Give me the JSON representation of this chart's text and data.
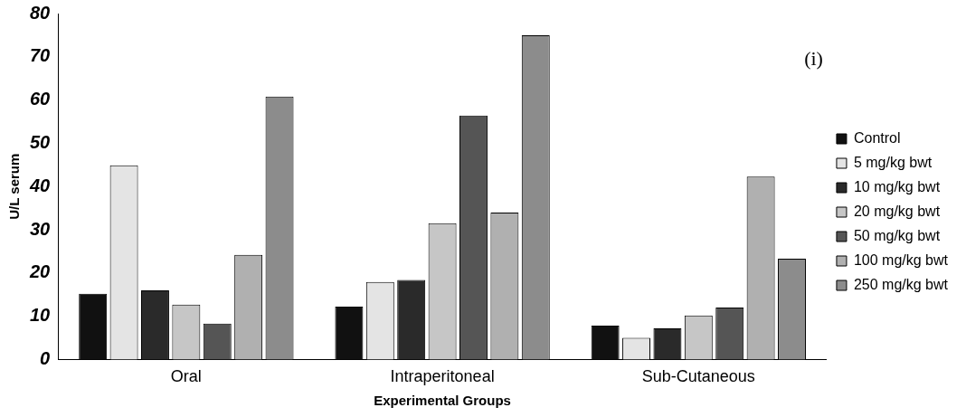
{
  "chart_data": {
    "type": "bar",
    "xlabel": "Experimental Groups",
    "ylabel": "U/L serum",
    "categories": [
      "Oral",
      "Intraperitoneal",
      "Sub-Cutaneous"
    ],
    "series": [
      {
        "name": "Control",
        "color": "#111111",
        "values": [
          15.2,
          12.2,
          7.8
        ]
      },
      {
        "name": "5 mg/kg bwt",
        "color": "#e4e4e4",
        "values": [
          44.9,
          17.9,
          5
        ]
      },
      {
        "name": "10 mg/kg bwt",
        "color": "#2a2a2a",
        "values": [
          16,
          18.4,
          7.2
        ]
      },
      {
        "name": "20 mg/kg bwt",
        "color": "#c6c6c6",
        "values": [
          12.7,
          31.5,
          10.2
        ]
      },
      {
        "name": "50 mg/kg bwt",
        "color": "#555555",
        "values": [
          8.3,
          56.4,
          12
        ]
      },
      {
        "name": "100 mg/kg bwt",
        "color": "#b0b0b0",
        "values": [
          24.2,
          34,
          42.3
        ]
      },
      {
        "name": "250 mg/kg bwt",
        "color": "#8c8c8c",
        "values": [
          60.8,
          75,
          23.3
        ]
      }
    ],
    "ylim": [
      0,
      80
    ],
    "yticks": [
      0,
      10,
      20,
      30,
      40,
      50,
      60,
      70,
      80
    ],
    "grid": false,
    "legend": "right",
    "annotations": [
      "(i)"
    ]
  }
}
